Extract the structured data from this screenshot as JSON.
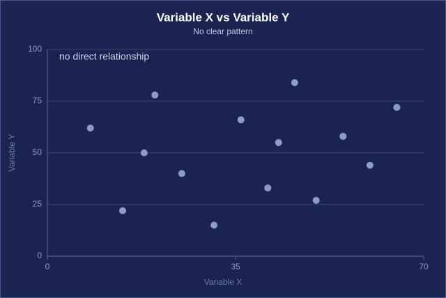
{
  "chart_data": {
    "type": "scatter",
    "title": "Variable X vs Variable Y",
    "subtitle": "No clear pattern",
    "x_label": "Variable X",
    "y_label": "Variable Y",
    "annotation": "no direct relationship",
    "color": "#8e9bc9",
    "x": [
      8,
      14,
      18,
      20,
      25,
      31,
      36,
      41,
      43,
      46,
      50,
      55,
      60,
      65
    ],
    "values": [
      62,
      22,
      50,
      78,
      40,
      15,
      66,
      33,
      55,
      84,
      27,
      58,
      44,
      72
    ],
    "xlim": [
      0,
      70
    ],
    "xticks": [
      0,
      35,
      70
    ],
    "ylim": [
      0,
      100
    ],
    "yticks": [
      0,
      25,
      50,
      75,
      100
    ],
    "grid": true
  }
}
